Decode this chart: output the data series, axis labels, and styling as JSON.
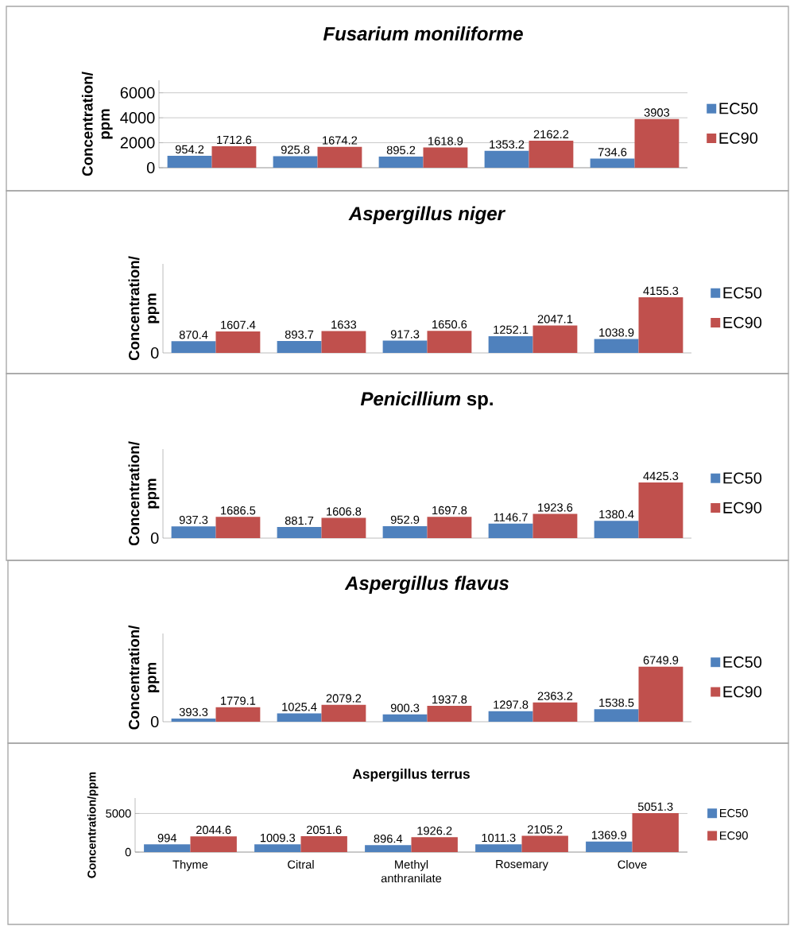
{
  "chart_data": [
    {
      "type": "bar",
      "title": "*Fusarium moniliforme*",
      "ylabel": "Concentration/ ppm",
      "categories": [
        null,
        null,
        null,
        null,
        null
      ],
      "series": [
        {
          "name": "EC50",
          "color": "#4f81bd",
          "values": [
            954.2,
            925.8,
            895.2,
            1353.2,
            734.6
          ]
        },
        {
          "name": "EC90",
          "color": "#c0504d",
          "values": [
            1712.6,
            1674.2,
            1618.9,
            2162.2,
            3903
          ]
        }
      ],
      "ylim": [
        0,
        7000
      ],
      "yticks": [
        0,
        2000,
        4000,
        6000
      ],
      "grid": "y",
      "legend": "right",
      "data_labels": true
    },
    {
      "type": "bar",
      "title": "*Aspergillus niger*",
      "ylabel": "Concentration/ ppm",
      "categories": [
        null,
        null,
        null,
        null,
        null
      ],
      "series": [
        {
          "name": "EC50",
          "color": "#4f81bd",
          "values": [
            870.4,
            893.7,
            917.3,
            1252.1,
            1038.9
          ]
        },
        {
          "name": "EC90",
          "color": "#c0504d",
          "values": [
            1607.4,
            1633,
            1650.6,
            2047.1,
            4155.3
          ]
        }
      ],
      "annotations": [
        "0"
      ],
      "legend": "right",
      "data_labels": true
    },
    {
      "type": "bar",
      "title": "*Penicillium* sp.",
      "ylabel": "Concentration/ ppm",
      "categories": [
        null,
        null,
        null,
        null,
        null
      ],
      "series": [
        {
          "name": "EC50",
          "color": "#4f81bd",
          "values": [
            937.3,
            881.7,
            952.9,
            1146.7,
            1380.4
          ]
        },
        {
          "name": "EC90",
          "color": "#c0504d",
          "values": [
            1686.5,
            1606.8,
            1697.8,
            1923.6,
            4425.3
          ]
        }
      ],
      "annotations": [
        "0"
      ],
      "legend": "right",
      "data_labels": true
    },
    {
      "type": "bar",
      "title": "*Aspergillus flavus*",
      "ylabel": "Concentration/ ppm",
      "categories": [
        null,
        null,
        null,
        null,
        null
      ],
      "series": [
        {
          "name": "EC50",
          "color": "#4f81bd",
          "values": [
            393.3,
            1025.4,
            900.3,
            1297.8,
            1538.5
          ]
        },
        {
          "name": "EC90",
          "color": "#c0504d",
          "values": [
            1779.1,
            2079.2,
            1937.8,
            2363.2,
            6749.9
          ]
        }
      ],
      "annotations": [
        "0"
      ],
      "legend": "right",
      "data_labels": true
    },
    {
      "type": "bar",
      "title": "Aspergillus terrus",
      "ylabel": "Concentration/ppm",
      "categories": [
        "Thyme",
        "Citral",
        "Methyl anthranilate",
        "Rosemary",
        "Clove"
      ],
      "series": [
        {
          "name": "EC50",
          "color": "#4f81bd",
          "values": [
            994,
            1009.3,
            896.4,
            1011.3,
            1369.9
          ]
        },
        {
          "name": "EC90",
          "color": "#c0504d",
          "values": [
            2044.6,
            2051.6,
            1926.2,
            2105.2,
            5051.3
          ]
        }
      ],
      "ylim": [
        0,
        7000
      ],
      "yticks": [
        0,
        5000
      ],
      "grid": "y",
      "legend": "right",
      "data_labels": true
    }
  ]
}
